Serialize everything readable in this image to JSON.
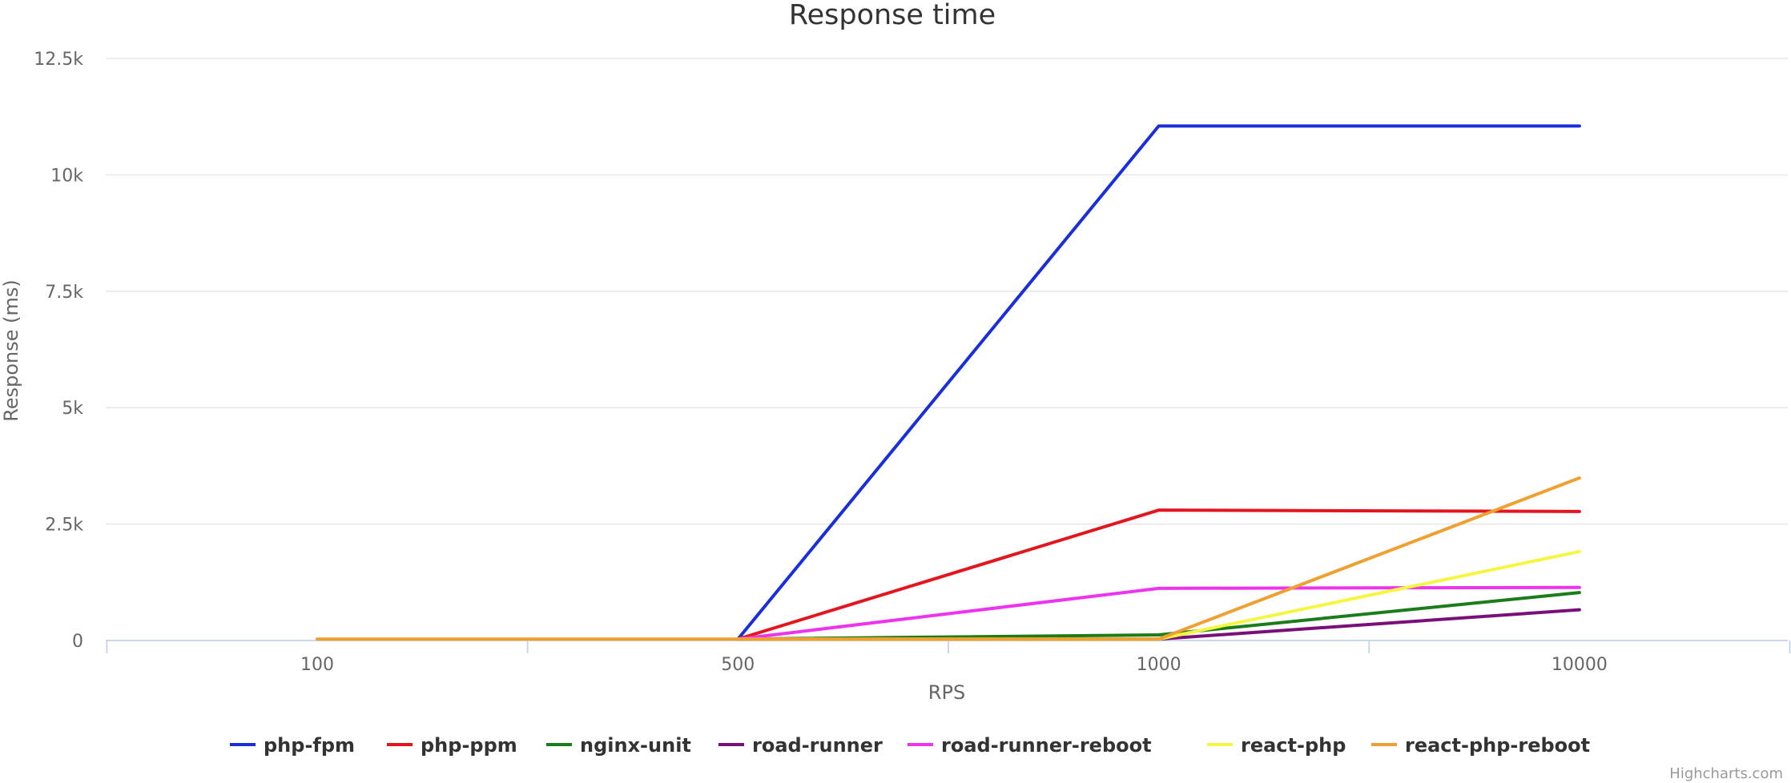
{
  "chart_data": {
    "type": "line",
    "title": "Response time",
    "xlabel": "RPS",
    "ylabel": "Response (ms)",
    "categories": [
      "100",
      "500",
      "1000",
      "10000"
    ],
    "ylim": [
      0,
      12500
    ],
    "y_ticks": [
      0,
      2500,
      5000,
      7500,
      10000,
      12500
    ],
    "y_tick_labels": [
      "0",
      "2.5k",
      "5k",
      "7.5k",
      "10k",
      "12.5k"
    ],
    "grid": true,
    "legend_position": "bottom",
    "series": [
      {
        "name": "php-fpm",
        "color": "#1a2fd8",
        "values": [
          null,
          30,
          11050,
          11050
        ]
      },
      {
        "name": "php-ppm",
        "color": "#e3161f",
        "values": [
          null,
          30,
          2800,
          2770
        ]
      },
      {
        "name": "nginx-unit",
        "color": "#1a7d1a",
        "values": [
          null,
          30,
          120,
          1030
        ]
      },
      {
        "name": "road-runner",
        "color": "#7a0f7a",
        "values": [
          null,
          30,
          30,
          660
        ]
      },
      {
        "name": "road-runner-reboot",
        "color": "#ee33ee",
        "values": [
          null,
          30,
          1120,
          1140
        ]
      },
      {
        "name": "react-php",
        "color": "#f5f542",
        "values": [
          null,
          30,
          30,
          1910
        ]
      },
      {
        "name": "react-php-reboot",
        "color": "#f0a030",
        "values": [
          30,
          30,
          30,
          3490
        ]
      }
    ]
  },
  "credits": "Highcharts.com"
}
